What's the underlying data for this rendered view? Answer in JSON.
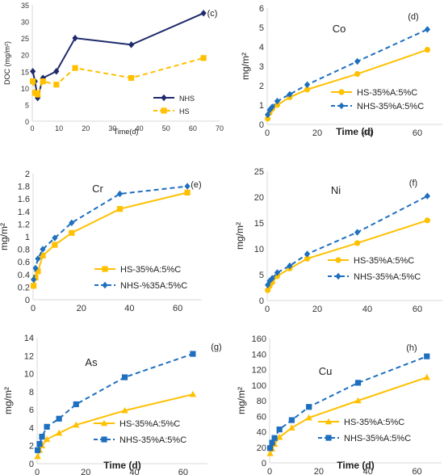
{
  "colors": {
    "navy": "#1f2a6b",
    "yellow": "#ffc000",
    "blue": "#1f6fbf",
    "axis": "#d9d9d9",
    "text": "#333333"
  },
  "chart_data": [
    {
      "type": "line",
      "panel_label": "(c)",
      "title": "",
      "xlabel": "Time(d)",
      "ylabel": "DOC (mg/m²)",
      "xlim": [
        0,
        70
      ],
      "ylim": [
        0,
        35
      ],
      "xticks": [
        "0",
        "10",
        "20",
        "30",
        "40",
        "50",
        "60",
        "70"
      ],
      "yticks": [
        "0",
        "5",
        "10",
        "15",
        "20",
        "25",
        "30",
        "35"
      ],
      "grid": false,
      "legend": "right",
      "series": [
        {
          "name": "NHS",
          "color": "navy",
          "dash": false,
          "marker": "diamond",
          "x": [
            0.2,
            1,
            2,
            4,
            9,
            16,
            37,
            64
          ],
          "y": [
            15,
            12,
            7,
            13,
            15,
            25,
            23,
            32.5
          ]
        },
        {
          "name": "HS",
          "color": "yellow",
          "dash": true,
          "marker": "square",
          "x": [
            0.2,
            1,
            2,
            4,
            9,
            16,
            37,
            64
          ],
          "y": [
            12,
            8.5,
            8,
            12,
            11,
            16,
            13,
            19
          ]
        }
      ]
    },
    {
      "type": "line",
      "panel_label": "(d)",
      "title": "Co",
      "xlabel": "Time (d)",
      "ylabel": "mg/m²",
      "xlim": [
        0,
        70
      ],
      "ylim": [
        0,
        6
      ],
      "xticks": [
        "0",
        "20",
        "40",
        "60"
      ],
      "yticks": [
        "0",
        "1",
        "2",
        "3",
        "4",
        "5",
        "6"
      ],
      "grid": false,
      "legend": "bottom-right",
      "series": [
        {
          "name": "HS-35%A:5%C",
          "color": "yellow",
          "dash": false,
          "marker": "circle",
          "x": [
            0.2,
            1,
            2,
            4,
            9,
            16,
            36,
            64
          ],
          "y": [
            0.3,
            0.6,
            0.8,
            1.0,
            1.4,
            1.8,
            2.6,
            3.85
          ]
        },
        {
          "name": "NHS-35%A:5%C",
          "color": "blue",
          "dash": true,
          "marker": "diamond",
          "x": [
            0.2,
            1,
            2,
            4,
            9,
            16,
            36,
            64
          ],
          "y": [
            0.5,
            0.75,
            0.9,
            1.2,
            1.55,
            2.05,
            3.25,
            4.9
          ]
        }
      ]
    },
    {
      "type": "line",
      "panel_label": "(e)",
      "title": "Cr",
      "xlabel": "",
      "ylabel": "mg/m²",
      "xlim": [
        0,
        70
      ],
      "ylim": [
        0,
        2
      ],
      "xticks": [
        "0",
        "20",
        "40",
        "60"
      ],
      "yticks": [
        "0",
        "0.2",
        "0.4",
        "0.6",
        "0.8",
        "1",
        "1.2",
        "1.4",
        "1.6",
        "1.8",
        "2"
      ],
      "grid": false,
      "legend": "bottom-right",
      "series": [
        {
          "name": "HS-35%A:5%C",
          "color": "yellow",
          "dash": false,
          "marker": "square",
          "x": [
            0.2,
            1,
            2,
            4,
            9,
            16,
            36,
            64
          ],
          "y": [
            0.22,
            0.35,
            0.45,
            0.7,
            0.87,
            1.06,
            1.44,
            1.7
          ]
        },
        {
          "name": "NHS-%35A:5%C",
          "color": "blue",
          "dash": true,
          "marker": "diamond",
          "x": [
            0.2,
            1,
            2,
            4,
            9,
            16,
            36,
            64
          ],
          "y": [
            0.32,
            0.5,
            0.65,
            0.8,
            0.98,
            1.22,
            1.68,
            1.8
          ]
        }
      ]
    },
    {
      "type": "line",
      "panel_label": "(f)",
      "title": "Ni",
      "xlabel": "",
      "ylabel": "mg/m²",
      "xlim": [
        0,
        70
      ],
      "ylim": [
        0,
        25
      ],
      "xticks": [
        "0",
        "20",
        "40",
        "60"
      ],
      "yticks": [
        "0",
        "5",
        "10",
        "15",
        "20",
        "25"
      ],
      "grid": false,
      "legend": "bottom-right",
      "series": [
        {
          "name": "HS-35%A:5%C",
          "color": "yellow",
          "dash": false,
          "marker": "circle",
          "x": [
            0.2,
            1,
            2,
            4,
            9,
            16,
            36,
            64
          ],
          "y": [
            2.0,
            2.8,
            3.5,
            4.7,
            6.2,
            8.1,
            11.1,
            15.5
          ]
        },
        {
          "name": "NHS-35%A:5%C",
          "color": "blue",
          "dash": true,
          "marker": "diamond",
          "x": [
            0.2,
            1,
            2,
            4,
            9,
            16,
            36,
            64
          ],
          "y": [
            3.0,
            3.8,
            4.3,
            5.4,
            6.7,
            9.0,
            13.2,
            20.2
          ]
        }
      ]
    },
    {
      "type": "line",
      "panel_label": "(g)",
      "title": "As",
      "xlabel": "Time (d)",
      "ylabel": "mg/m²",
      "xlim": [
        0,
        70
      ],
      "ylim": [
        0,
        14
      ],
      "xticks": [
        "0",
        "20",
        "40",
        "60"
      ],
      "yticks": [
        "0",
        "2",
        "4",
        "6",
        "8",
        "10",
        "12",
        "14"
      ],
      "grid": false,
      "legend": "bottom-right",
      "series": [
        {
          "name": "HS-35%A:5%C",
          "color": "yellow",
          "dash": false,
          "marker": "triangle",
          "x": [
            0.2,
            1,
            2,
            4,
            9,
            16,
            36,
            64
          ],
          "y": [
            0.8,
            1.5,
            2.0,
            2.7,
            3.4,
            4.3,
            5.9,
            7.7
          ]
        },
        {
          "name": "NHS-35%A:5%C",
          "color": "blue",
          "dash": true,
          "marker": "square",
          "x": [
            0.2,
            1,
            2,
            4,
            9,
            16,
            36,
            64
          ],
          "y": [
            1.5,
            2.2,
            3.0,
            4.1,
            5.0,
            6.6,
            9.6,
            12.2
          ]
        }
      ]
    },
    {
      "type": "line",
      "panel_label": "(h)",
      "title": "Cu",
      "xlabel": "Time (d)",
      "ylabel": "mg/m²",
      "xlim": [
        0,
        70
      ],
      "ylim": [
        0,
        160
      ],
      "xticks": [
        "0",
        "20",
        "40",
        "60"
      ],
      "yticks": [
        "0",
        "20",
        "40",
        "60",
        "80",
        "100",
        "120",
        "140",
        "160"
      ],
      "grid": false,
      "legend": "bottom-right",
      "series": [
        {
          "name": "HS-35%A:5%C",
          "color": "yellow",
          "dash": false,
          "marker": "triangle",
          "x": [
            0.2,
            1,
            2,
            4,
            9,
            16,
            36,
            64
          ],
          "y": [
            12,
            18,
            24,
            33,
            45,
            58,
            80,
            110
          ]
        },
        {
          "name": "NHS-35%A:5%C",
          "color": "blue",
          "dash": true,
          "marker": "square",
          "x": [
            0.2,
            1,
            2,
            4,
            9,
            16,
            36,
            64
          ],
          "y": [
            19,
            26,
            32,
            43,
            55,
            72,
            103,
            137
          ]
        }
      ]
    }
  ]
}
